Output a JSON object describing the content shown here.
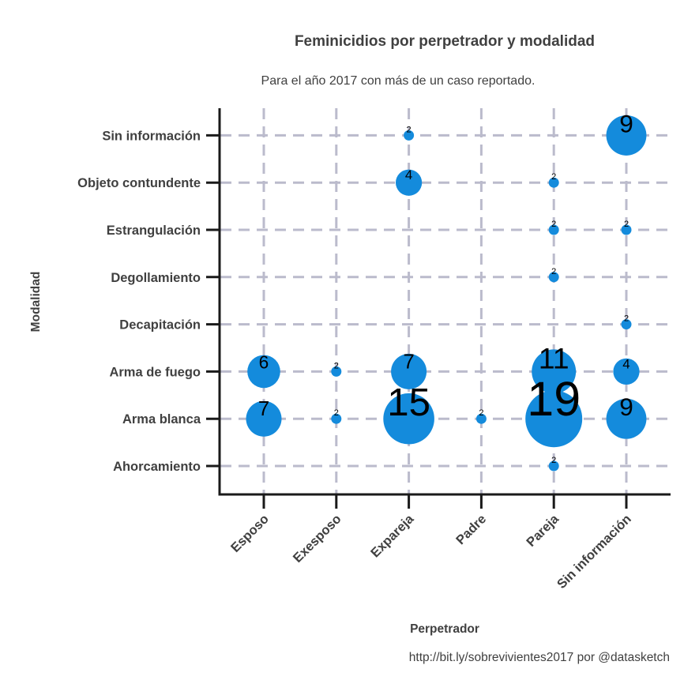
{
  "chart_data": {
    "type": "scatter",
    "title": "Feminicidios por perpetrador y modalidad",
    "subtitle": "Para el año 2017 con más de un caso reportado.",
    "caption": "http://bit.ly/sobrevivientes2017 por @datasketch",
    "xlabel": "Perpetrador",
    "ylabel": "Modalidad",
    "x_categories": [
      "Esposo",
      "Exesposo",
      "Expareja",
      "Padre",
      "Pareja",
      "Sin información"
    ],
    "y_categories": [
      "Ahorcamiento",
      "Arma blanca",
      "Arma de fuego",
      "Decapitación",
      "Degollamiento",
      "Estrangulación",
      "Objeto contundente",
      "Sin información"
    ],
    "grid": true,
    "legend": "none",
    "point_color": "#148bdc",
    "points": [
      {
        "x": "Esposo",
        "y": "Arma de fuego",
        "value": 6
      },
      {
        "x": "Esposo",
        "y": "Arma blanca",
        "value": 7
      },
      {
        "x": "Exesposo",
        "y": "Arma de fuego",
        "value": 2
      },
      {
        "x": "Exesposo",
        "y": "Arma blanca",
        "value": 2
      },
      {
        "x": "Expareja",
        "y": "Sin información",
        "value": 2
      },
      {
        "x": "Expareja",
        "y": "Objeto contundente",
        "value": 4
      },
      {
        "x": "Expareja",
        "y": "Arma de fuego",
        "value": 7
      },
      {
        "x": "Expareja",
        "y": "Arma blanca",
        "value": 15
      },
      {
        "x": "Padre",
        "y": "Arma blanca",
        "value": 2
      },
      {
        "x": "Pareja",
        "y": "Objeto contundente",
        "value": 2
      },
      {
        "x": "Pareja",
        "y": "Estrangulación",
        "value": 2
      },
      {
        "x": "Pareja",
        "y": "Degollamiento",
        "value": 2
      },
      {
        "x": "Pareja",
        "y": "Arma de fuego",
        "value": 11
      },
      {
        "x": "Pareja",
        "y": "Arma blanca",
        "value": 19
      },
      {
        "x": "Pareja",
        "y": "Ahorcamiento",
        "value": 2
      },
      {
        "x": "Sin información",
        "y": "Sin información",
        "value": 9
      },
      {
        "x": "Sin información",
        "y": "Estrangulación",
        "value": 2
      },
      {
        "x": "Sin información",
        "y": "Decapitación",
        "value": 2
      },
      {
        "x": "Sin información",
        "y": "Arma de fuego",
        "value": 4
      },
      {
        "x": "Sin información",
        "y": "Arma blanca",
        "value": 9
      }
    ]
  }
}
